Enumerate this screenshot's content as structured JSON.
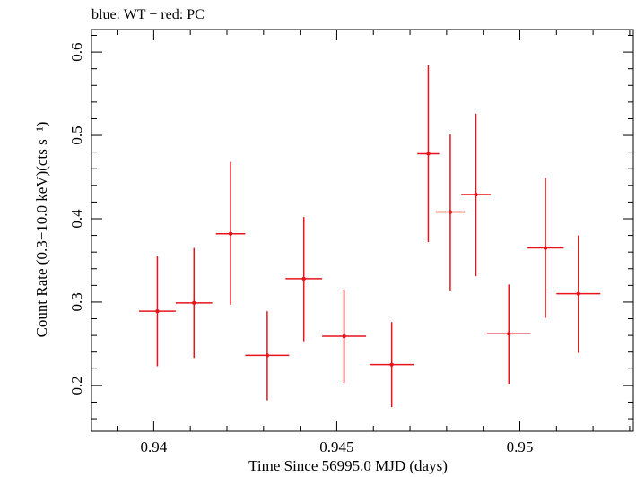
{
  "chart_data": {
    "type": "scatter",
    "title": "blue: WT − red: PC",
    "xlabel": "Time Since 56995.0 MJD (days)",
    "ylabel": "Count Rate (0.3−10.0 keV)(cts s⁻¹)",
    "xlim": [
      0.9383,
      0.9531
    ],
    "ylim": [
      0.145,
      0.627
    ],
    "x_ticks": [
      "0.94",
      "0.945",
      "0.95"
    ],
    "y_ticks": [
      "0.2",
      "0.3",
      "0.4",
      "0.5",
      "0.6"
    ],
    "grid": false,
    "series": [
      {
        "color": "#e8141a",
        "points": [
          {
            "x": 0.9401,
            "xerr": 0.0005,
            "y": 0.289,
            "ylo": 0.223,
            "yhi": 0.355
          },
          {
            "x": 0.9411,
            "xerr": 0.0005,
            "y": 0.299,
            "ylo": 0.233,
            "yhi": 0.365
          },
          {
            "x": 0.9421,
            "xerr": 0.0004,
            "y": 0.382,
            "ylo": 0.297,
            "yhi": 0.468
          },
          {
            "x": 0.9431,
            "xerr": 0.0006,
            "y": 0.236,
            "ylo": 0.182,
            "yhi": 0.289
          },
          {
            "x": 0.9441,
            "xerr": 0.0005,
            "y": 0.328,
            "ylo": 0.253,
            "yhi": 0.402
          },
          {
            "x": 0.9452,
            "xerr": 0.0006,
            "y": 0.259,
            "ylo": 0.203,
            "yhi": 0.315
          },
          {
            "x": 0.9465,
            "xerr": 0.0006,
            "y": 0.225,
            "ylo": 0.174,
            "yhi": 0.276
          },
          {
            "x": 0.9475,
            "xerr": 0.0003,
            "y": 0.478,
            "ylo": 0.372,
            "yhi": 0.584
          },
          {
            "x": 0.9481,
            "xerr": 0.0004,
            "y": 0.408,
            "ylo": 0.314,
            "yhi": 0.501
          },
          {
            "x": 0.9488,
            "xerr": 0.0004,
            "y": 0.429,
            "ylo": 0.331,
            "yhi": 0.526
          },
          {
            "x": 0.9497,
            "xerr": 0.0006,
            "y": 0.262,
            "ylo": 0.202,
            "yhi": 0.321
          },
          {
            "x": 0.9507,
            "xerr": 0.0005,
            "y": 0.365,
            "ylo": 0.281,
            "yhi": 0.449
          },
          {
            "x": 0.9516,
            "xerr": 0.0006,
            "y": 0.31,
            "ylo": 0.239,
            "yhi": 0.38
          }
        ]
      }
    ]
  }
}
